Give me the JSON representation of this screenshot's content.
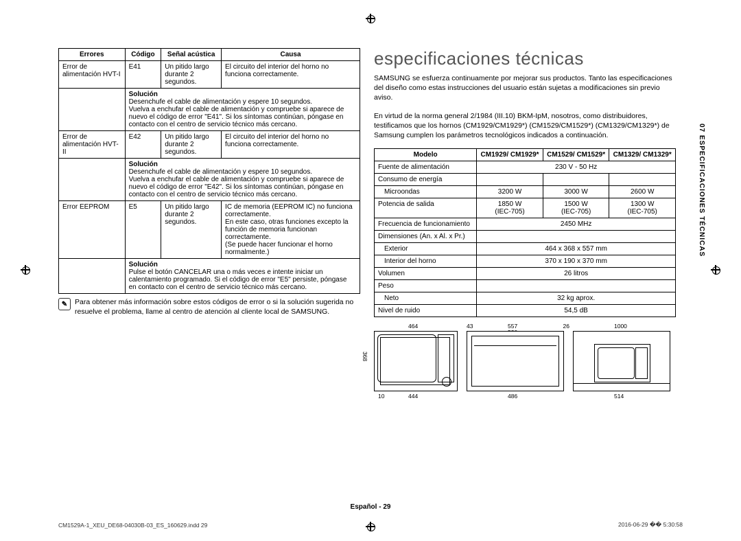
{
  "sideTab": "07  ESPECIFICACIONES TÉCNICAS",
  "errorTable": {
    "headers": [
      "Errores",
      "Código",
      "Señal acústica",
      "Causa"
    ],
    "rows": [
      {
        "error": "Error de alimentación HVT-I",
        "code": "E41",
        "signal": "Un pitido largo durante 2 segundos.",
        "cause": "El circuito del interior del horno no funciona correctamente.",
        "solLabel": "Solución",
        "solution": "Desenchufe el cable de alimentación y espere 10 segundos.\nVuelva a enchufar el cable de alimentación y compruebe si aparece de nuevo el código de error \"E41\". Si los síntomas continúan, póngase en contacto con el centro de servicio técnico más cercano."
      },
      {
        "error": "Error de alimentación HVT-II",
        "code": "E42",
        "signal": "Un pitido largo durante 2 segundos.",
        "cause": "El circuito del interior del horno no funciona correctamente.",
        "solLabel": "Solución",
        "solution": "Desenchufe el cable de alimentación y espere 10 segundos.\nVuelva a enchufar el cable de alimentación y compruebe si aparece de nuevo el código de error \"E42\". Si los síntomas continúan, póngase en contacto con el centro de servicio técnico más cercano."
      },
      {
        "error": "Error EEPROM",
        "code": "E5",
        "signal": "Un pitido largo durante 2 segundos.",
        "cause": "IC de memoria (EEPROM IC) no funciona correctamente.\nEn este caso, otras funciones excepto la función de memoria funcionan correctamente.\n(Se puede hacer funcionar el horno normalmente.)",
        "solLabel": "Solución",
        "solution": "Pulse el botón CANCELAR una o más veces e intente iniciar un calentamiento programado. Si el código de error \"E5\" persiste, póngase en contacto con el centro de servicio técnico más cercano."
      }
    ]
  },
  "note": {
    "icon": "✎",
    "text": "Para obtener más información sobre estos códigos de error o si la solución sugerida no resuelve el problema, llame al centro de atención al cliente local de SAMSUNG."
  },
  "title": "especificaciones técnicas",
  "intro1": "SAMSUNG se esfuerza continuamente por mejorar sus productos. Tanto las especificaciones del diseño como estas instrucciones del usuario están sujetas a modificaciones sin previo aviso.",
  "intro2": "En virtud de la norma general 2/1984 (III.10) BKM-IpM, nosotros, como distribuidores, testificamos que los hornos (CM1929/CM1929*) (CM1529/CM1529*) (CM1329/CM1329*) de Samsung cumplen los parámetros tecnológicos indicados a continuación.",
  "specTable": {
    "headerModel": "Modelo",
    "models": [
      "CM1929/\nCM1929*",
      "CM1529/\nCM1529*",
      "CM1329/\nCM1329*"
    ],
    "rows": [
      {
        "label": "Fuente de alimentación",
        "vals": [
          "230 V - 50 Hz"
        ],
        "span": 3
      },
      {
        "label": "Consumo de energía",
        "sub": "Microondas",
        "vals": [
          "3200 W",
          "3000 W",
          "2600 W"
        ]
      },
      {
        "label": "Potencia de salida",
        "vals": [
          "1850 W\n(IEC-705)",
          "1500 W\n(IEC-705)",
          "1300 W\n(IEC-705)"
        ]
      },
      {
        "label": "Frecuencia de funcionamiento",
        "vals": [
          "2450 MHz"
        ],
        "span": 3
      },
      {
        "label": "Dimensiones (An. x Al. x Pr.)",
        "sub": "Exterior",
        "vals": [
          "464 x 368 x 557 mm"
        ],
        "span": 3
      },
      {
        "sub": "Interior del horno",
        "vals": [
          "370 x 190 x 370 mm"
        ],
        "span": 3
      },
      {
        "label": "Volumen",
        "vals": [
          "26 litros"
        ],
        "span": 3
      },
      {
        "label": "Peso",
        "sub": "Neto",
        "vals": [
          "32 kg aprox."
        ],
        "span": 3
      },
      {
        "label": "Nivel de ruido",
        "vals": [
          "54,5 dB"
        ],
        "span": 3
      }
    ]
  },
  "diagrams": {
    "d1": {
      "w": "464",
      "h": "368",
      "bw": "444",
      "bl": "10"
    },
    "d2": {
      "w": "557",
      "w2": "530",
      "l": "43",
      "r": "26",
      "bw": "486"
    },
    "d3": {
      "w": "1000",
      "bw": "514"
    }
  },
  "footer": {
    "center": "Español - 29",
    "left": "CM1529A-1_XEU_DE68-04030B-03_ES_160629.indd   29",
    "right": "2016-06-29   �� 5:30:58"
  }
}
